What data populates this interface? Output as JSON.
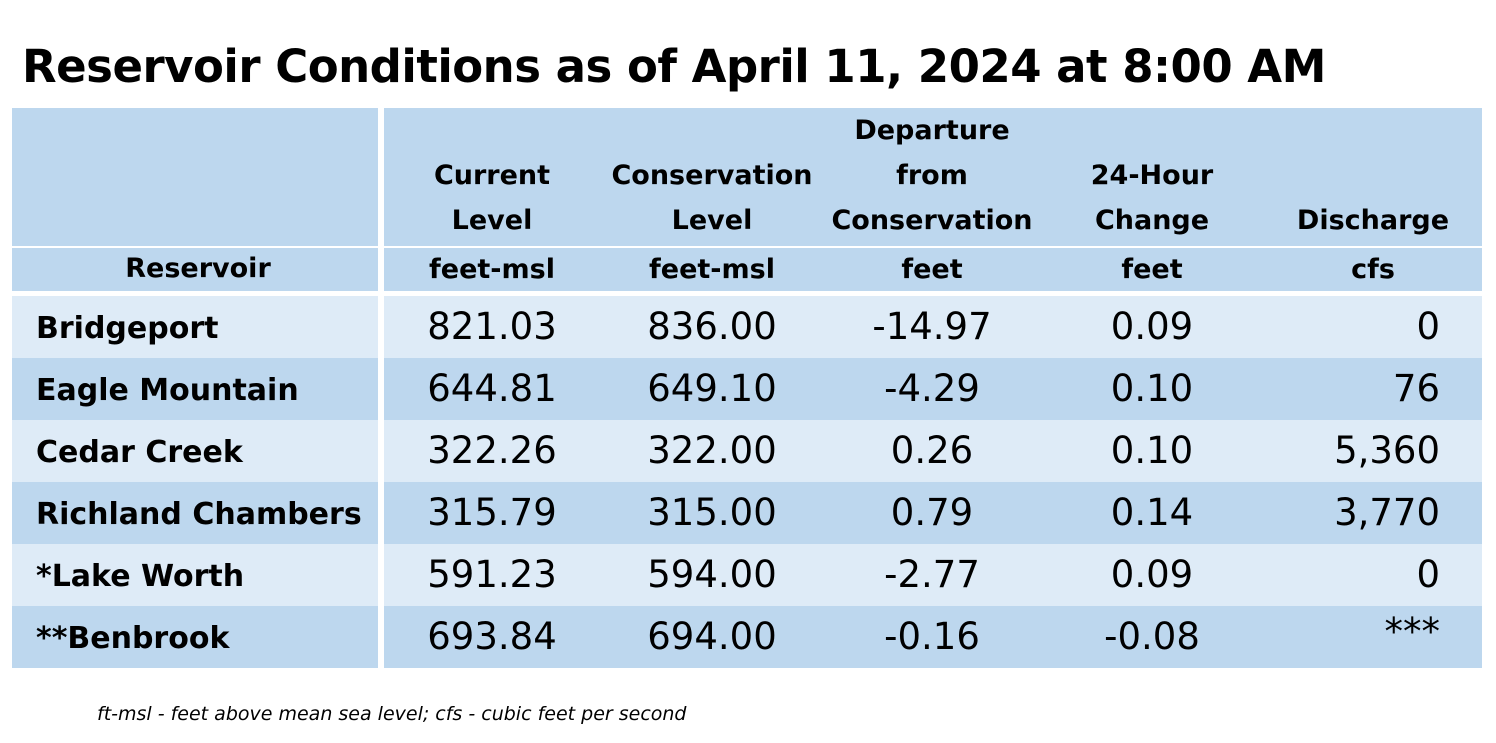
{
  "title": "Reservoir Conditions as of April 11, 2024 at 8:00 AM",
  "table": {
    "headers": [
      {
        "lines": [
          "Reservoir"
        ],
        "unit": ""
      },
      {
        "lines": [
          "Current",
          "Level"
        ],
        "unit": "feet-msl"
      },
      {
        "lines": [
          "Conservation",
          "Level"
        ],
        "unit": "feet-msl"
      },
      {
        "lines": [
          "Departure",
          "from",
          "Conservation"
        ],
        "unit": "feet"
      },
      {
        "lines": [
          "24-Hour",
          "Change"
        ],
        "unit": "feet"
      },
      {
        "lines": [
          "Discharge"
        ],
        "unit": "cfs"
      }
    ],
    "rows": [
      {
        "reservoir": "Bridgeport",
        "current": "821.03",
        "conservation": "836.00",
        "departure": "-14.97",
        "change": "0.09",
        "discharge": "0"
      },
      {
        "reservoir": "Eagle Mountain",
        "current": "644.81",
        "conservation": "649.10",
        "departure": "-4.29",
        "change": "0.10",
        "discharge": "76"
      },
      {
        "reservoir": "Cedar Creek",
        "current": "322.26",
        "conservation": "322.00",
        "departure": "0.26",
        "change": "0.10",
        "discharge": "5,360"
      },
      {
        "reservoir": "Richland Chambers",
        "current": "315.79",
        "conservation": "315.00",
        "departure": "0.79",
        "change": "0.14",
        "discharge": "3,770"
      },
      {
        "reservoir": "*Lake Worth",
        "current": "591.23",
        "conservation": "594.00",
        "departure": "-2.77",
        "change": "0.09",
        "discharge": "0"
      },
      {
        "reservoir": "**Benbrook",
        "current": "693.84",
        "conservation": "694.00",
        "departure": "-0.16",
        "change": "-0.08",
        "discharge": "***"
      }
    ]
  },
  "footnote": "ft-msl - feet above mean sea level; cfs - cubic feet per second",
  "colors": {
    "header_bg": "#bdd7ee",
    "row_light": "#deebf7",
    "row_dark": "#bdd7ee"
  }
}
